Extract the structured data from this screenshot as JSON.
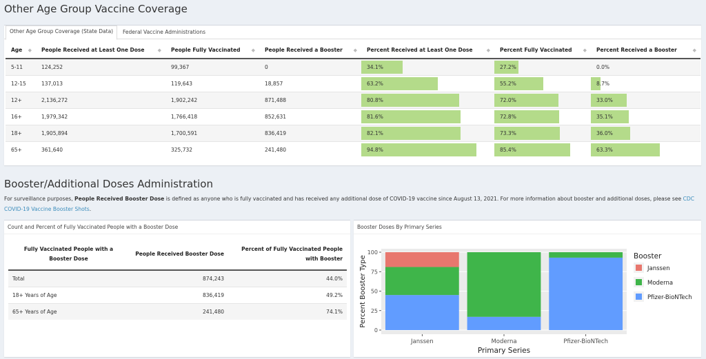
{
  "section1_title": "Other Age Group Vaccine Coverage",
  "tabs": [
    "Other Age Group Coverage (State Data)",
    "Federal Vaccine Administrations"
  ],
  "table1": {
    "headers": [
      "Age",
      "People Received at Least One Dose",
      "People Fully Vaccinated",
      "People Received a Booster",
      "Percent Received at Least One Dose",
      "Percent Fully Vaccinated",
      "Percent Received a Booster"
    ],
    "rows": [
      {
        "age": "5-11",
        "one": "124,252",
        "full": "99,367",
        "boost": "0",
        "p_one": "34.1%",
        "p_full": "27.2%",
        "p_boost": "0.0%",
        "v_one": 34.1,
        "v_full": 27.2,
        "v_boost": 0.0
      },
      {
        "age": "12-15",
        "one": "137,013",
        "full": "119,643",
        "boost": "18,857",
        "p_one": "63.2%",
        "p_full": "55.2%",
        "p_boost": "8.7%",
        "v_one": 63.2,
        "v_full": 55.2,
        "v_boost": 8.7
      },
      {
        "age": "12+",
        "one": "2,136,272",
        "full": "1,902,242",
        "boost": "871,488",
        "p_one": "80.8%",
        "p_full": "72.0%",
        "p_boost": "33.0%",
        "v_one": 80.8,
        "v_full": 72.0,
        "v_boost": 33.0
      },
      {
        "age": "16+",
        "one": "1,979,342",
        "full": "1,766,418",
        "boost": "852,631",
        "p_one": "81.6%",
        "p_full": "72.8%",
        "p_boost": "35.1%",
        "v_one": 81.6,
        "v_full": 72.8,
        "v_boost": 35.1
      },
      {
        "age": "18+",
        "one": "1,905,894",
        "full": "1,700,591",
        "boost": "836,419",
        "p_one": "82.1%",
        "p_full": "73.3%",
        "p_boost": "36.0%",
        "v_one": 82.1,
        "v_full": 73.3,
        "v_boost": 36.0
      },
      {
        "age": "65+",
        "one": "361,640",
        "full": "325,732",
        "boost": "241,480",
        "p_one": "94.8%",
        "p_full": "85.4%",
        "p_boost": "63.3%",
        "v_one": 94.8,
        "v_full": 85.4,
        "v_boost": 63.3
      }
    ]
  },
  "section2_title": "Booster/Additional Doses Administration",
  "para": {
    "pre": "For surveillance purposes, ",
    "bold": "People Received Booster Dose",
    "post": " is defined as anyone who is fully vaccinated and has received any additional dose of COVID-19 vaccine since August 13, 2021. For more information about booster and additional doses, please see ",
    "link": "CDC COVID-19 Vaccine Booster Shots",
    "end": "."
  },
  "card2_title": "Count and Percent of Fully Vaccinated People with a Booster Dose",
  "table2": {
    "headers": [
      "Fully Vaccinated People with a Booster Dose",
      "People Received Booster Dose",
      "Percent of Fully Vaccinated People with Booster"
    ],
    "rows": [
      {
        "label": "Total",
        "count": "874,243",
        "pct": "44.0%"
      },
      {
        "label": "18+ Years of Age",
        "count": "836,419",
        "pct": "49.2%"
      },
      {
        "label": "65+ Years of Age",
        "count": "241,480",
        "pct": "74.1%"
      }
    ]
  },
  "card3_title": "Booster Doses By Primary Series",
  "accent_bar": "#b4db8a",
  "link_color": "#3c8dbc",
  "chart_data": {
    "type": "bar",
    "stacked": true,
    "categories": [
      "Janssen",
      "Moderna",
      "Pfizer-BioNTech"
    ],
    "series": [
      {
        "name": "Pfizer-BioNTech",
        "color": "#619cff",
        "values": [
          45,
          17,
          93
        ]
      },
      {
        "name": "Moderna",
        "color": "#3fb54a",
        "values": [
          36,
          83,
          7
        ]
      },
      {
        "name": "Janssen",
        "color": "#e8776e",
        "values": [
          19,
          0,
          0
        ]
      }
    ],
    "xlabel": "Primary Series",
    "ylabel": "Percent Booster Type",
    "yticks": [
      "0",
      "25",
      "50",
      "75",
      "100"
    ],
    "ylim": [
      0,
      100
    ],
    "legend_title": "Booster",
    "legend_items": [
      "Janssen",
      "Moderna",
      "Pfizer-BioNTech"
    ],
    "legend_colors": [
      "#e8776e",
      "#3fb54a",
      "#619cff"
    ],
    "legend_position": "right",
    "background": "#ebebeb"
  }
}
